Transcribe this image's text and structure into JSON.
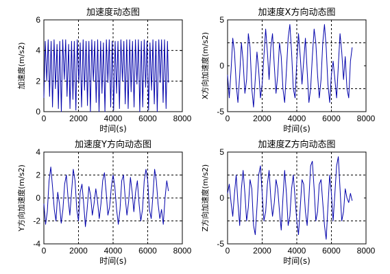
{
  "chart_data": [
    {
      "type": "line",
      "title": "加速度动态图",
      "xlabel": "时间(s)",
      "ylabel": "加速度(m/s2)",
      "xlim": [
        0,
        8000
      ],
      "ylim": [
        0,
        6
      ],
      "xticks": [
        0,
        2000,
        4000,
        6000,
        8000
      ],
      "yticks": [
        0,
        2,
        4,
        6
      ],
      "grid": "dashed lines at x=2000,4000,6000 and y=2,4",
      "line_color": "#0000aa",
      "series": [
        {
          "x": [
            0,
            80,
            170,
            250,
            330,
            420,
            500,
            590,
            670,
            760,
            840,
            920,
            1010,
            1090,
            1180,
            1260,
            1340,
            1430,
            1510,
            1600,
            1680,
            1760,
            1850,
            1930,
            2020,
            2100,
            2180,
            2270,
            2350,
            2440,
            2520,
            2600,
            2690,
            2770,
            2860,
            2940,
            3020,
            3110,
            3190,
            3280,
            3360,
            3440,
            3530,
            3610,
            3700,
            3780,
            3860,
            3950,
            4030,
            4120,
            4200,
            4280,
            4370,
            4450,
            4540,
            4620,
            4700,
            4790,
            4870,
            4960,
            5040,
            5120,
            5210,
            5290,
            5380,
            5460,
            5540,
            5630,
            5710,
            5800,
            5880,
            5960,
            6050,
            6130,
            6220,
            6300,
            6380,
            6470,
            6550,
            6640,
            6720,
            6800,
            6890,
            6970,
            7060,
            7140,
            7200
          ],
          "y": [
            0.9,
            4.6,
            2.0,
            4.7,
            1.0,
            4.6,
            0.3,
            4.7,
            1.5,
            4.4,
            0.2,
            4.6,
            0.0,
            4.7,
            2.1,
            4.7,
            1.0,
            4.4,
            0.2,
            4.6,
            0.8,
            4.6,
            0.1,
            4.7,
            1.9,
            4.5,
            0.3,
            4.7,
            1.4,
            4.6,
            0.4,
            4.6,
            0.0,
            4.7,
            2.0,
            4.6,
            0.6,
            4.7,
            0.0,
            4.6,
            1.2,
            4.5,
            0.0,
            4.7,
            1.9,
            4.7,
            0.3,
            4.6,
            0.1,
            4.6,
            1.2,
            4.6,
            0.2,
            4.7,
            2.0,
            4.6,
            0.5,
            4.7,
            0.2,
            4.7,
            1.3,
            4.6,
            0.3,
            4.7,
            1.8,
            4.7,
            0.0,
            4.6,
            0.3,
            4.7,
            1.6,
            4.6,
            0.1,
            4.5,
            1.4,
            4.7,
            0.5,
            4.6,
            0.0,
            4.7,
            1.9,
            4.7,
            0.6,
            4.7,
            0.2,
            4.6,
            1.9
          ]
        }
      ]
    },
    {
      "type": "line",
      "title": "加速度X方向动态图",
      "xlabel": "时间(s)",
      "ylabel": "X方向加速度(m/s2)",
      "xlim": [
        0,
        8000
      ],
      "ylim": [
        -5,
        5
      ],
      "xticks": [
        0,
        2000,
        4000,
        6000,
        8000
      ],
      "yticks": [
        -5,
        0,
        5
      ],
      "grid": "dashed lines at x=2000,4000,6000 and y=-2.5,2.5",
      "line_color": "#0000aa",
      "series": [
        {
          "x": [
            0,
            100,
            200,
            300,
            400,
            500,
            600,
            700,
            800,
            900,
            1000,
            1100,
            1200,
            1300,
            1400,
            1500,
            1600,
            1700,
            1800,
            1900,
            2000,
            2100,
            2200,
            2300,
            2400,
            2500,
            2600,
            2700,
            2800,
            2900,
            3000,
            3100,
            3200,
            3300,
            3400,
            3500,
            3600,
            3700,
            3800,
            3900,
            4000,
            4100,
            4200,
            4300,
            4400,
            4500,
            4600,
            4700,
            4800,
            4900,
            5000,
            5100,
            5200,
            5300,
            5400,
            5500,
            5600,
            5700,
            5800,
            5900,
            6000,
            6100,
            6200,
            6300,
            6400,
            6500,
            6600,
            6700,
            6800,
            6900,
            7000,
            7100,
            7200
          ],
          "y": [
            -1.0,
            -3.5,
            -0.5,
            3.0,
            1.5,
            -2.0,
            -4.0,
            -1.0,
            2.5,
            0.5,
            -3.0,
            -1.5,
            3.5,
            2.0,
            -2.5,
            -4.5,
            -1.5,
            1.5,
            -0.5,
            -3.5,
            -2.0,
            1.0,
            4.0,
            1.5,
            -1.5,
            2.0,
            3.5,
            0.0,
            -3.0,
            -1.0,
            2.5,
            1.0,
            -2.5,
            -4.0,
            -0.5,
            3.0,
            4.5,
            1.5,
            -2.5,
            -3.5,
            0.5,
            3.5,
            1.0,
            -2.0,
            0.5,
            3.0,
            -0.5,
            -4.0,
            -2.5,
            1.0,
            4.0,
            2.5,
            -1.0,
            -3.5,
            -1.5,
            2.5,
            4.5,
            2.0,
            -2.0,
            -4.0,
            -1.0,
            0.5,
            -1.5,
            -3.5,
            0.0,
            3.5,
            1.5,
            -1.5,
            1.0,
            -2.5,
            -3.5,
            0.5,
            2.0
          ]
        }
      ]
    },
    {
      "type": "line",
      "title": "加速度Y方向动态图",
      "xlabel": "时间(s)",
      "ylabel": "Y方向加速度(m/s2)",
      "xlim": [
        0,
        8000
      ],
      "ylim": [
        -4,
        4
      ],
      "xticks": [
        0,
        2000,
        4000,
        6000,
        8000
      ],
      "yticks": [
        -4,
        -2,
        0,
        2,
        4
      ],
      "grid": "dashed lines at x=2000,4000,6000 and y=-2,2",
      "line_color": "#0000aa",
      "series": [
        {
          "x": [
            0,
            100,
            200,
            300,
            400,
            500,
            600,
            700,
            800,
            900,
            1000,
            1100,
            1200,
            1300,
            1400,
            1500,
            1600,
            1700,
            1800,
            1900,
            2000,
            2100,
            2200,
            2300,
            2400,
            2500,
            2600,
            2700,
            2800,
            2900,
            3000,
            3100,
            3200,
            3300,
            3400,
            3500,
            3600,
            3700,
            3800,
            3900,
            4000,
            4100,
            4200,
            4300,
            4400,
            4500,
            4600,
            4700,
            4800,
            4900,
            5000,
            5100,
            5200,
            5300,
            5400,
            5500,
            5600,
            5700,
            5800,
            5900,
            6000,
            6100,
            6200,
            6300,
            6400,
            6500,
            6600,
            6700,
            6800,
            6900,
            7000,
            7100,
            7200
          ],
          "y": [
            -0.5,
            -2.3,
            -1.2,
            1.5,
            2.7,
            1.0,
            -1.0,
            -2.0,
            0.5,
            -0.5,
            -2.2,
            -1.0,
            1.2,
            2.0,
            0.0,
            -1.5,
            0.5,
            2.5,
            1.5,
            -1.0,
            -2.0,
            0.5,
            1.2,
            -0.5,
            -2.5,
            -1.0,
            1.0,
            0.2,
            -1.5,
            -0.5,
            0.8,
            -0.3,
            -1.8,
            -0.5,
            1.5,
            2.2,
            0.5,
            -1.5,
            -0.8,
            1.0,
            2.0,
            1.0,
            -1.0,
            -2.3,
            -1.0,
            1.5,
            2.0,
            0.0,
            -1.5,
            -0.3,
            1.8,
            0.5,
            -1.2,
            0.5,
            1.5,
            -0.5,
            -2.0,
            -1.0,
            1.5,
            2.5,
            1.5,
            -1.0,
            -1.8,
            0.2,
            2.5,
            1.5,
            -0.5,
            -1.8,
            -1.0,
            -2.3,
            0.0,
            1.5,
            0.6
          ]
        }
      ]
    },
    {
      "type": "line",
      "title": "加速度Z方向动态图",
      "xlabel": "时间(s)",
      "ylabel": "Z方向加速度(m/s2)",
      "xlim": [
        0,
        8000
      ],
      "ylim": [
        -5,
        5
      ],
      "xticks": [
        0,
        2000,
        4000,
        6000,
        8000
      ],
      "yticks": [
        -5,
        0,
        5
      ],
      "grid": "dashed lines at x=2000,4000,6000 and y=-2.5,2.5",
      "line_color": "#0000aa",
      "series": [
        {
          "x": [
            0,
            100,
            200,
            300,
            400,
            500,
            600,
            700,
            800,
            900,
            1000,
            1100,
            1200,
            1300,
            1400,
            1500,
            1600,
            1700,
            1800,
            1900,
            2000,
            2100,
            2200,
            2300,
            2400,
            2500,
            2600,
            2700,
            2800,
            2900,
            3000,
            3100,
            3200,
            3300,
            3400,
            3500,
            3600,
            3700,
            3800,
            3900,
            4000,
            4100,
            4200,
            4300,
            4400,
            4500,
            4600,
            4700,
            4800,
            4900,
            5000,
            5100,
            5200,
            5300,
            5400,
            5500,
            5600,
            5700,
            5800,
            5900,
            6000,
            6100,
            6200,
            6300,
            6400,
            6500,
            6600,
            6700,
            6800,
            6900,
            7000,
            7100,
            7200
          ],
          "y": [
            0.5,
            1.5,
            -0.5,
            -2.0,
            0.5,
            2.5,
            -0.5,
            -3.0,
            1.0,
            3.0,
            0.5,
            -2.5,
            -1.0,
            2.0,
            1.0,
            -3.0,
            -4.0,
            -1.0,
            2.5,
            3.5,
            0.5,
            -2.5,
            -1.5,
            1.5,
            3.0,
            0.0,
            -2.0,
            -0.5,
            2.0,
            1.0,
            -1.5,
            -3.5,
            0.0,
            3.0,
            0.5,
            -3.0,
            -2.0,
            1.0,
            2.5,
            0.0,
            -2.5,
            -4.0,
            -1.0,
            2.0,
            1.5,
            -1.5,
            -3.0,
            0.0,
            3.5,
            4.0,
            1.0,
            -2.5,
            -1.5,
            1.5,
            2.0,
            -0.5,
            -3.0,
            -4.5,
            -1.0,
            2.5,
            0.5,
            -2.5,
            0.5,
            3.5,
            4.5,
            1.0,
            -2.5,
            -1.5,
            1.0,
            0.0,
            -0.5,
            0.5,
            -0.3
          ]
        }
      ]
    }
  ]
}
